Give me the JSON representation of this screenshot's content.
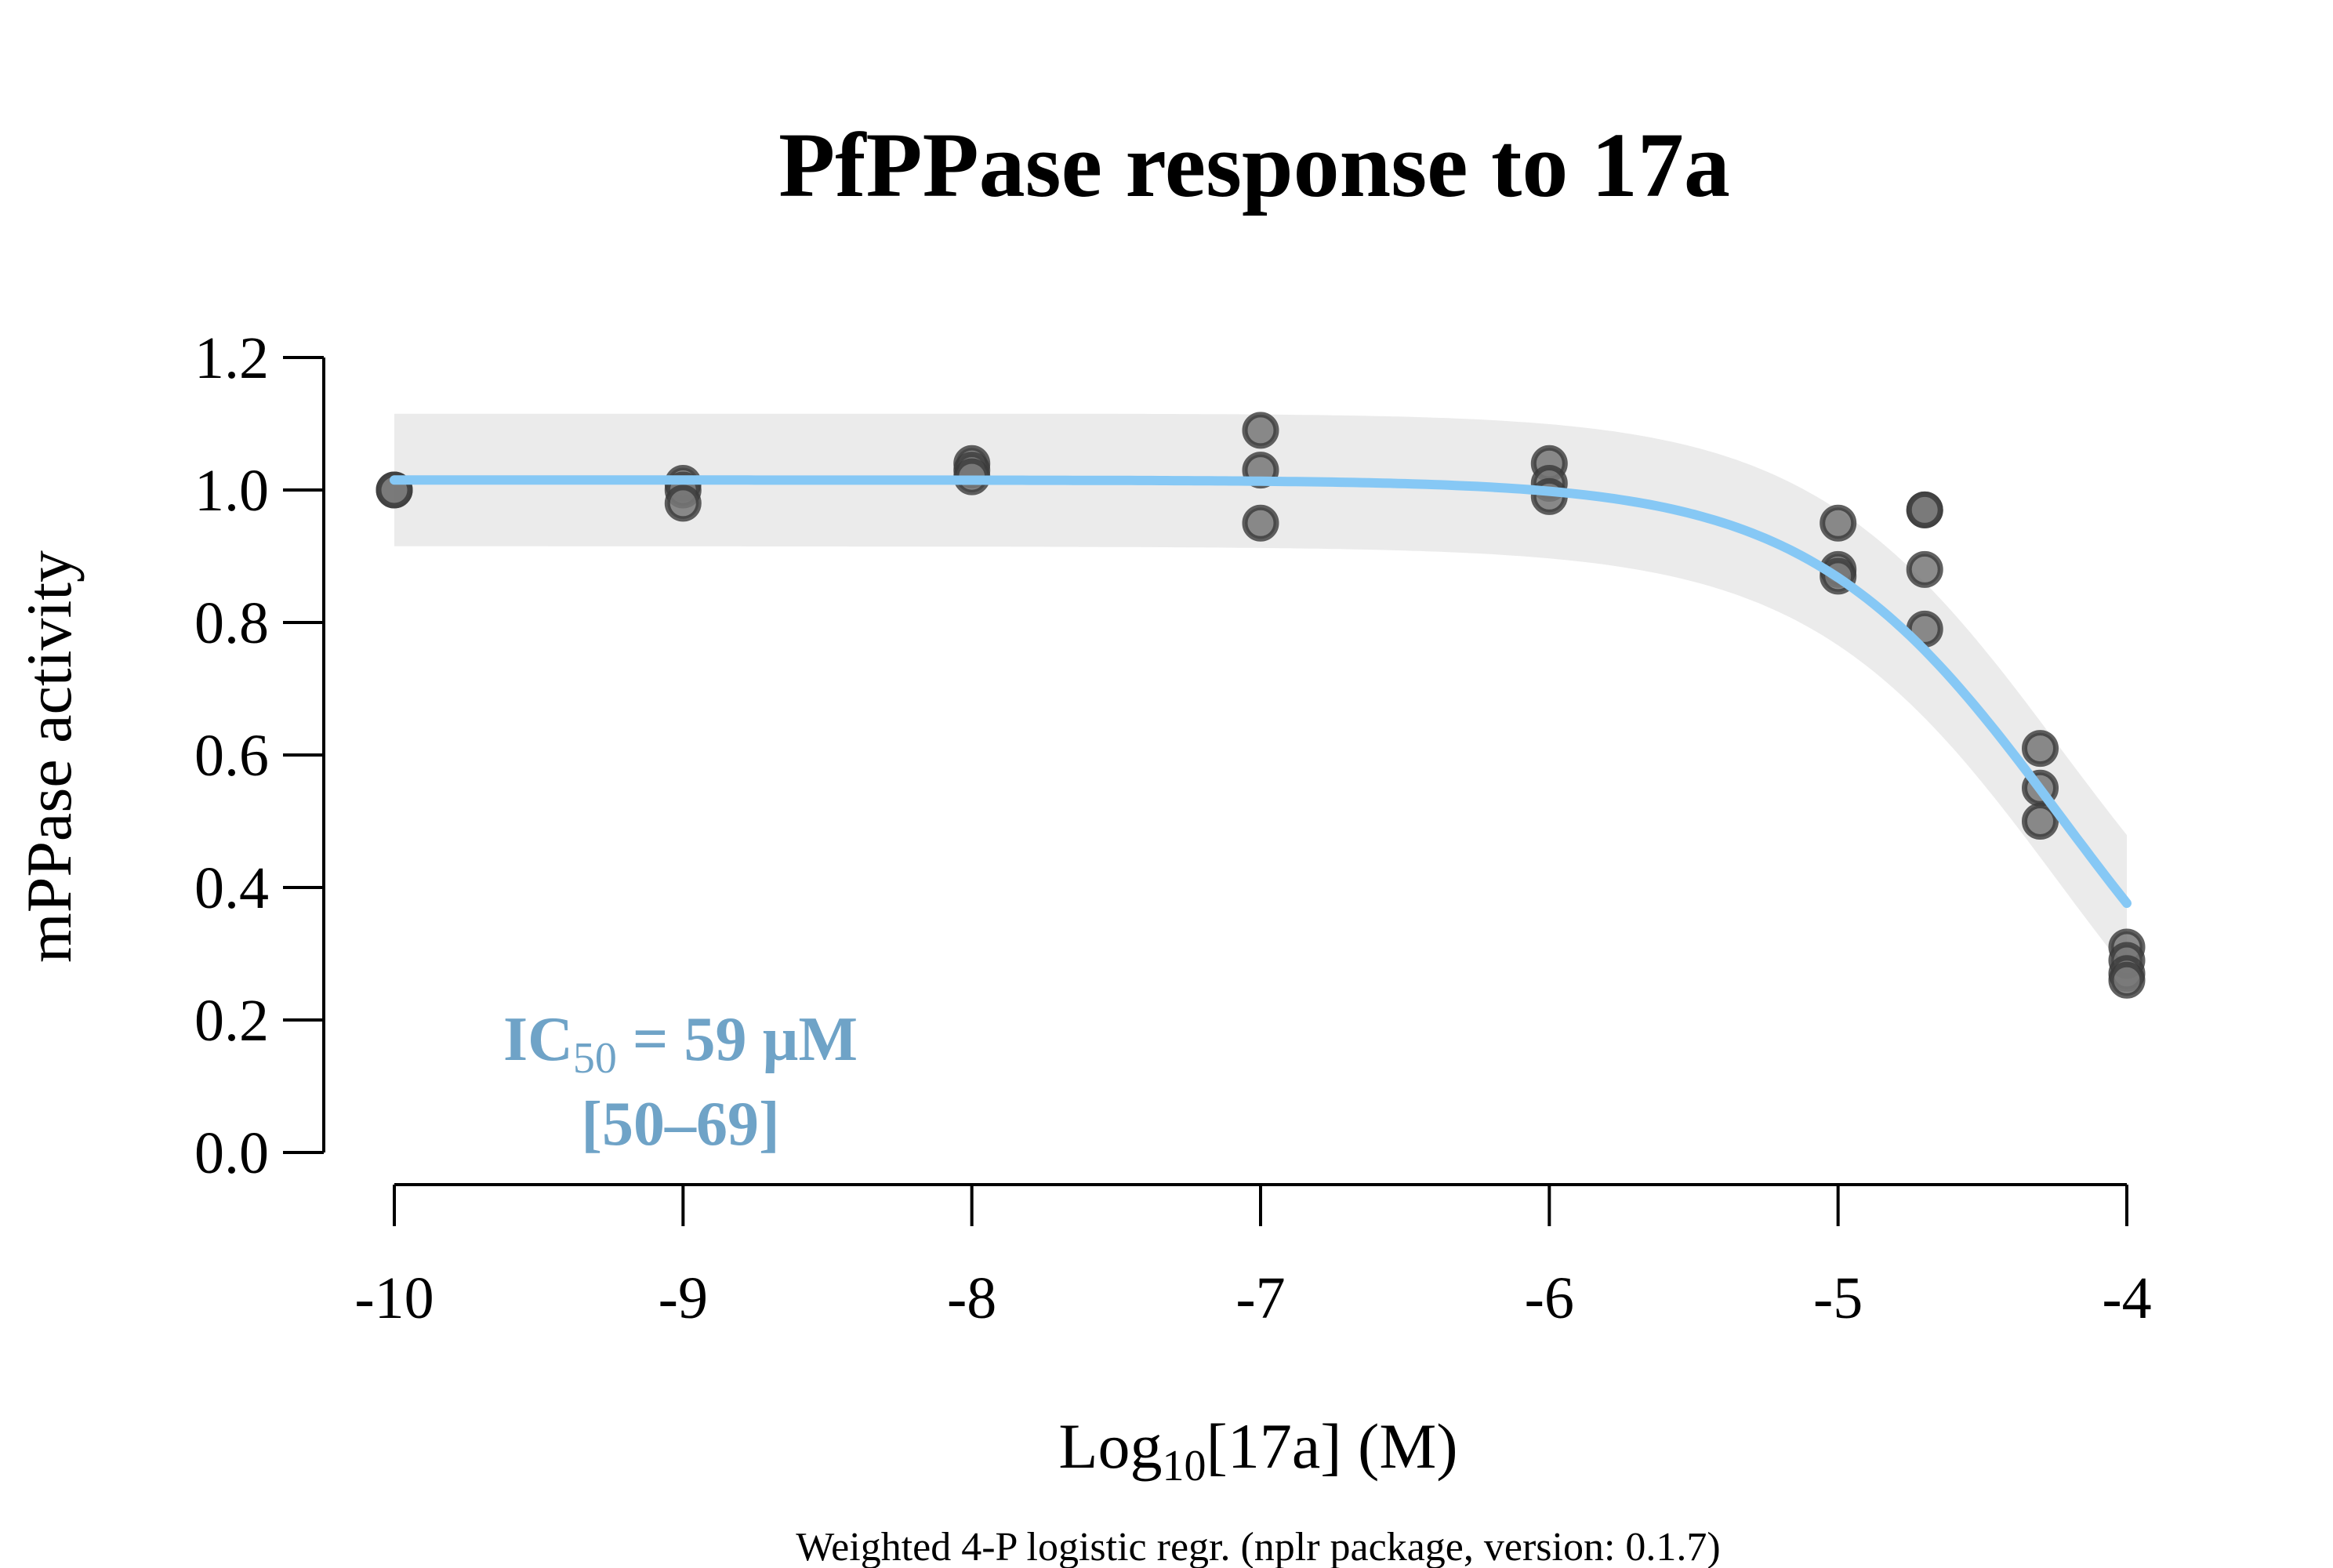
{
  "chart_data": {
    "type": "scatter",
    "title": "PfPPase response to 17a",
    "xlabel": {
      "prefix": "Log",
      "sub": "10",
      "suffix": "[17a] (M)"
    },
    "ylabel": "mPPase activity",
    "footer": "Weighted 4-P logistic regr. (nplr package, version: 0.1.7)",
    "x_ticks": [
      "-10",
      "-9",
      "-8",
      "-7",
      "-6",
      "-5",
      "-4"
    ],
    "y_ticks": [
      "0.0",
      "0.2",
      "0.4",
      "0.6",
      "0.8",
      "1.0",
      "1.2"
    ],
    "xlim": [
      -10,
      -4
    ],
    "ylim": [
      0,
      1.2
    ],
    "points": [
      {
        "x": -10,
        "y": 1.0
      },
      {
        "x": -10,
        "y": 1.0
      },
      {
        "x": -9,
        "y": 1.01
      },
      {
        "x": -9,
        "y": 1.0
      },
      {
        "x": -9,
        "y": 0.98
      },
      {
        "x": -8,
        "y": 1.04
      },
      {
        "x": -8,
        "y": 1.03
      },
      {
        "x": -8,
        "y": 1.02
      },
      {
        "x": -7,
        "y": 1.09
      },
      {
        "x": -7,
        "y": 1.03
      },
      {
        "x": -7,
        "y": 0.95
      },
      {
        "x": -6,
        "y": 1.04
      },
      {
        "x": -6,
        "y": 1.01
      },
      {
        "x": -6,
        "y": 0.99
      },
      {
        "x": -5,
        "y": 0.95
      },
      {
        "x": -5,
        "y": 0.88
      },
      {
        "x": -5,
        "y": 0.87
      },
      {
        "x": -4.7,
        "y": 0.97
      },
      {
        "x": -4.7,
        "y": 0.97
      },
      {
        "x": -4.7,
        "y": 0.88
      },
      {
        "x": -4.7,
        "y": 0.79
      },
      {
        "x": -4.3,
        "y": 0.61
      },
      {
        "x": -4.3,
        "y": 0.55
      },
      {
        "x": -4.3,
        "y": 0.5
      },
      {
        "x": -4,
        "y": 0.31
      },
      {
        "x": -4,
        "y": 0.29
      },
      {
        "x": -4,
        "y": 0.27
      },
      {
        "x": -4,
        "y": 0.26
      }
    ],
    "fit": {
      "model": "4-parameter logistic",
      "top": 1.015,
      "bottom": 0,
      "log_ic50": -4.23,
      "hill": 1.0,
      "band_halfwidth": 0.1
    },
    "ic50_label": {
      "prefix": "IC",
      "sub": "50",
      "value": " = 59 µM",
      "ci": "[50–69]"
    },
    "colors": {
      "fit_line": "#86c8f5",
      "band": "#ebebeb",
      "point_fill": "#777777",
      "point_edge": "#3a3a3a",
      "ic50_text": "#6fa3c7"
    }
  }
}
